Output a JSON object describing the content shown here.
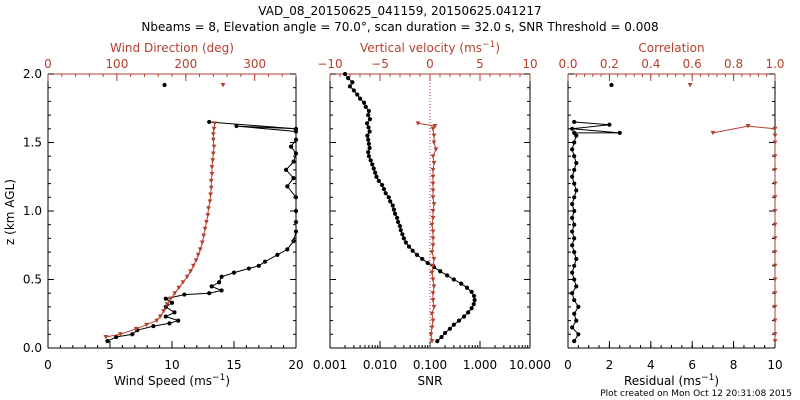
{
  "header": {
    "title": "VAD_08_20150625_041159, 20150625.041217",
    "subtitle": "Nbeams = 8, Elevation angle = 70.0°, scan duration = 32.0 s, SNR Threshold = 0.008",
    "footer": "Plot created on Mon Oct 12 20:31:08 2015"
  },
  "colors": {
    "black": "#000000",
    "red": "#b5402f"
  },
  "chart_data": [
    {
      "type": "line",
      "ylabel": "z (km AGL)",
      "ylim": [
        0.0,
        2.0
      ],
      "yticks": [
        "0.0",
        "0.5",
        "1.0",
        "1.5",
        "2.0"
      ],
      "bottom_axis": {
        "label": "Wind Speed (ms",
        "label_sup": "−1",
        "label_end": ")",
        "range": [
          0,
          20
        ],
        "ticks": [
          "0",
          "5",
          "10",
          "15",
          "20"
        ]
      },
      "top_axis": {
        "label": "Wind Direction (deg)",
        "range": [
          0,
          360
        ],
        "ticks": [
          "0",
          "100",
          "200",
          "300"
        ]
      },
      "series": [
        {
          "color": "black",
          "axis": "bottom",
          "points": [
            [
              4.8,
              0.05
            ],
            [
              5.5,
              0.08
            ],
            [
              6.8,
              0.1
            ],
            [
              7.2,
              0.13
            ],
            [
              8.5,
              0.16
            ],
            [
              9.8,
              0.18
            ],
            [
              10.5,
              0.2
            ],
            [
              9.5,
              0.23
            ],
            [
              10.2,
              0.26
            ],
            [
              9.5,
              0.3
            ],
            [
              10,
              0.33
            ],
            [
              9.5,
              0.36
            ],
            [
              11,
              0.39
            ],
            [
              13,
              0.4
            ],
            [
              14,
              0.42
            ],
            [
              13.2,
              0.45
            ],
            [
              13.8,
              0.48
            ],
            [
              14,
              0.52
            ],
            [
              15,
              0.55
            ],
            [
              16.2,
              0.58
            ],
            [
              17,
              0.6
            ],
            [
              17.5,
              0.63
            ],
            [
              18.5,
              0.68
            ],
            [
              19.3,
              0.72
            ],
            [
              19.8,
              0.78
            ],
            [
              20,
              0.85
            ],
            [
              20,
              0.92
            ],
            [
              20,
              1.0
            ],
            [
              20,
              1.1
            ],
            [
              19.3,
              1.18
            ],
            [
              19.8,
              1.24
            ],
            [
              19.2,
              1.3
            ],
            [
              19.8,
              1.36
            ],
            [
              20,
              1.42
            ],
            [
              19.6,
              1.47
            ],
            [
              20,
              1.52
            ],
            [
              20,
              1.58
            ],
            [
              15.2,
              1.62
            ],
            [
              20,
              1.6
            ],
            [
              13,
              1.65
            ]
          ]
        },
        {
          "color": "black",
          "axis": "bottom",
          "points": [
            [
              9.4,
              1.92
            ]
          ]
        },
        {
          "color": "red",
          "axis": "top",
          "points": [
            [
              84,
              0.08
            ],
            [
              105,
              0.1
            ],
            [
              128,
              0.14
            ],
            [
              143,
              0.17
            ],
            [
              158,
              0.2
            ],
            [
              163,
              0.23
            ],
            [
              168,
              0.27
            ],
            [
              173,
              0.32
            ],
            [
              178,
              0.36
            ],
            [
              184,
              0.4
            ],
            [
              190,
              0.44
            ],
            [
              196,
              0.48
            ],
            [
              202,
              0.52
            ],
            [
              207,
              0.56
            ],
            [
              211,
              0.6
            ],
            [
              215,
              0.64
            ],
            [
              218,
              0.68
            ],
            [
              221,
              0.72
            ],
            [
              224,
              0.77
            ],
            [
              226,
              0.82
            ],
            [
              228,
              0.87
            ],
            [
              230,
              0.92
            ],
            [
              232,
              0.97
            ],
            [
              233,
              1.02
            ],
            [
              235,
              1.07
            ],
            [
              236,
              1.12
            ],
            [
              237,
              1.17
            ],
            [
              237,
              1.22
            ],
            [
              238,
              1.27
            ],
            [
              238,
              1.32
            ],
            [
              239,
              1.37
            ],
            [
              240,
              1.42
            ],
            [
              241,
              1.47
            ],
            [
              240,
              1.52
            ],
            [
              240,
              1.56
            ],
            [
              241,
              1.6
            ],
            [
              242,
              1.64
            ]
          ]
        },
        {
          "color": "red",
          "axis": "top",
          "points": [
            [
              254,
              1.92
            ]
          ]
        }
      ]
    },
    {
      "type": "line",
      "bottom_axis": {
        "label": "SNR",
        "scale": "log",
        "range": [
          0.001,
          10
        ],
        "ticks": [
          "0.001",
          "0.010",
          "0.100",
          "1.000",
          "10.000"
        ]
      },
      "top_axis": {
        "label": "Vertical velocity (ms",
        "label_sup": "−1",
        "label_end": ")",
        "range": [
          -10,
          10
        ],
        "ticks": [
          "−10",
          "−5",
          "0",
          "5",
          "10"
        ]
      },
      "ylim": [
        0.0,
        2.0
      ],
      "series": [
        {
          "color": "black",
          "axis": "bottom",
          "points": [
            [
              0.14,
              0.05
            ],
            [
              0.17,
              0.08
            ],
            [
              0.2,
              0.11
            ],
            [
              0.25,
              0.14
            ],
            [
              0.3,
              0.17
            ],
            [
              0.38,
              0.2
            ],
            [
              0.48,
              0.23
            ],
            [
              0.58,
              0.26
            ],
            [
              0.68,
              0.29
            ],
            [
              0.75,
              0.32
            ],
            [
              0.78,
              0.35
            ],
            [
              0.76,
              0.38
            ],
            [
              0.68,
              0.41
            ],
            [
              0.55,
              0.44
            ],
            [
              0.42,
              0.47
            ],
            [
              0.3,
              0.5
            ],
            [
              0.22,
              0.53
            ],
            [
              0.16,
              0.56
            ],
            [
              0.12,
              0.59
            ],
            [
              0.09,
              0.62
            ],
            [
              0.07,
              0.65
            ],
            [
              0.055,
              0.68
            ],
            [
              0.045,
              0.71
            ],
            [
              0.038,
              0.74
            ],
            [
              0.033,
              0.77
            ],
            [
              0.03,
              0.8
            ],
            [
              0.028,
              0.83
            ],
            [
              0.026,
              0.86
            ],
            [
              0.025,
              0.89
            ],
            [
              0.023,
              0.92
            ],
            [
              0.022,
              0.95
            ],
            [
              0.02,
              0.98
            ],
            [
              0.019,
              1.01
            ],
            [
              0.018,
              1.04
            ],
            [
              0.016,
              1.07
            ],
            [
              0.015,
              1.1
            ],
            [
              0.013,
              1.13
            ],
            [
              0.012,
              1.16
            ],
            [
              0.011,
              1.19
            ],
            [
              0.0095,
              1.22
            ],
            [
              0.0085,
              1.25
            ],
            [
              0.008,
              1.28
            ],
            [
              0.0075,
              1.31
            ],
            [
              0.007,
              1.34
            ],
            [
              0.0065,
              1.37
            ],
            [
              0.006,
              1.4
            ],
            [
              0.0058,
              1.43
            ],
            [
              0.0062,
              1.46
            ],
            [
              0.006,
              1.49
            ],
            [
              0.0058,
              1.52
            ],
            [
              0.0056,
              1.55
            ],
            [
              0.0062,
              1.58
            ],
            [
              0.0059,
              1.61
            ],
            [
              0.0055,
              1.64
            ],
            [
              0.0063,
              1.67
            ],
            [
              0.0058,
              1.7
            ],
            [
              0.006,
              1.73
            ],
            [
              0.0052,
              1.76
            ],
            [
              0.0048,
              1.79
            ],
            [
              0.004,
              1.82
            ],
            [
              0.0035,
              1.85
            ],
            [
              0.003,
              1.88
            ],
            [
              0.0025,
              1.91
            ],
            [
              0.0028,
              1.94
            ],
            [
              0.0023,
              1.97
            ],
            [
              0.002,
              2.0
            ]
          ]
        },
        {
          "color": "red",
          "axis": "top",
          "points": [
            [
              0.2,
              0.05
            ],
            [
              0.1,
              0.1
            ],
            [
              0.2,
              0.15
            ],
            [
              0.3,
              0.2
            ],
            [
              0.2,
              0.25
            ],
            [
              0.4,
              0.3
            ],
            [
              0.3,
              0.35
            ],
            [
              0.3,
              0.4
            ],
            [
              0.4,
              0.45
            ],
            [
              0.3,
              0.5
            ],
            [
              0.2,
              0.55
            ],
            [
              0.3,
              0.6
            ],
            [
              0.4,
              0.65
            ],
            [
              0.2,
              0.7
            ],
            [
              0.3,
              0.75
            ],
            [
              0.3,
              0.8
            ],
            [
              0.3,
              0.85
            ],
            [
              0.2,
              0.9
            ],
            [
              0.3,
              0.95
            ],
            [
              0.3,
              1.0
            ],
            [
              0.4,
              1.05
            ],
            [
              0.3,
              1.1
            ],
            [
              0.3,
              1.15
            ],
            [
              0.3,
              1.2
            ],
            [
              0.3,
              1.25
            ],
            [
              0.3,
              1.3
            ],
            [
              0.4,
              1.35
            ],
            [
              0.3,
              1.4
            ],
            [
              0.6,
              1.45
            ],
            [
              0.4,
              1.5
            ],
            [
              0.4,
              1.55
            ],
            [
              0.3,
              1.6
            ]
          ]
        },
        {
          "color": "red",
          "axis": "top",
          "points": [
            [
              -1.2,
              1.64
            ],
            [
              0.5,
              1.62
            ]
          ]
        }
      ]
    },
    {
      "type": "line",
      "bottom_axis": {
        "label": "Residual (ms",
        "label_sup": "−1",
        "label_end": ")",
        "range": [
          0,
          10
        ],
        "ticks": [
          "0",
          "2",
          "4",
          "6",
          "8",
          "10"
        ]
      },
      "top_axis": {
        "label": "Correlation",
        "range": [
          0.0,
          1.0
        ],
        "ticks": [
          "0.0",
          "0.2",
          "0.4",
          "0.6",
          "0.8",
          "1.0"
        ]
      },
      "ylim": [
        0.0,
        2.0
      ],
      "series": [
        {
          "color": "black",
          "axis": "bottom",
          "points": [
            [
              0.3,
              0.05
            ],
            [
              0.5,
              0.1
            ],
            [
              0.2,
              0.15
            ],
            [
              0.4,
              0.2
            ],
            [
              0.3,
              0.25
            ],
            [
              0.5,
              0.3
            ],
            [
              0.3,
              0.35
            ],
            [
              0.2,
              0.4
            ],
            [
              0.4,
              0.45
            ],
            [
              0.3,
              0.5
            ],
            [
              0.2,
              0.55
            ],
            [
              0.3,
              0.6
            ],
            [
              0.4,
              0.65
            ],
            [
              0.3,
              0.7
            ],
            [
              0.2,
              0.75
            ],
            [
              0.3,
              0.8
            ],
            [
              0.2,
              0.85
            ],
            [
              0.3,
              0.9
            ],
            [
              0.2,
              0.95
            ],
            [
              0.3,
              1.0
            ],
            [
              0.2,
              1.05
            ],
            [
              0.3,
              1.1
            ],
            [
              0.4,
              1.15
            ],
            [
              0.3,
              1.2
            ],
            [
              0.2,
              1.25
            ],
            [
              0.3,
              1.3
            ],
            [
              0.4,
              1.35
            ],
            [
              0.3,
              1.4
            ],
            [
              0.2,
              1.45
            ],
            [
              0.3,
              1.5
            ],
            [
              0.4,
              1.55
            ]
          ]
        },
        {
          "color": "black",
          "axis": "bottom",
          "points": [
            [
              0.3,
              1.57
            ],
            [
              2.5,
              1.57
            ],
            [
              0.2,
              1.6
            ],
            [
              2.0,
              1.63
            ],
            [
              0.3,
              1.65
            ]
          ]
        },
        {
          "color": "black",
          "axis": "bottom",
          "points": [
            [
              2.1,
              1.92
            ]
          ]
        },
        {
          "color": "red",
          "axis": "top",
          "points": [
            [
              1.0,
              0.05
            ],
            [
              1.0,
              0.1
            ],
            [
              1.0,
              0.2
            ],
            [
              1.0,
              0.3
            ],
            [
              1.0,
              0.4
            ],
            [
              1.0,
              0.5
            ],
            [
              1.0,
              0.6
            ],
            [
              1.0,
              0.7
            ],
            [
              1.0,
              0.8
            ],
            [
              1.0,
              0.9
            ],
            [
              1.0,
              1.0
            ],
            [
              1.0,
              1.1
            ],
            [
              1.0,
              1.2
            ],
            [
              1.0,
              1.3
            ],
            [
              1.0,
              1.4
            ],
            [
              1.0,
              1.5
            ],
            [
              1.0,
              1.55
            ]
          ]
        },
        {
          "color": "red",
          "axis": "top",
          "points": [
            [
              1.0,
              1.6
            ],
            [
              0.87,
              1.62
            ],
            [
              0.7,
              1.57
            ]
          ]
        },
        {
          "color": "red",
          "axis": "top",
          "points": [
            [
              0.59,
              1.92
            ]
          ]
        }
      ]
    }
  ]
}
